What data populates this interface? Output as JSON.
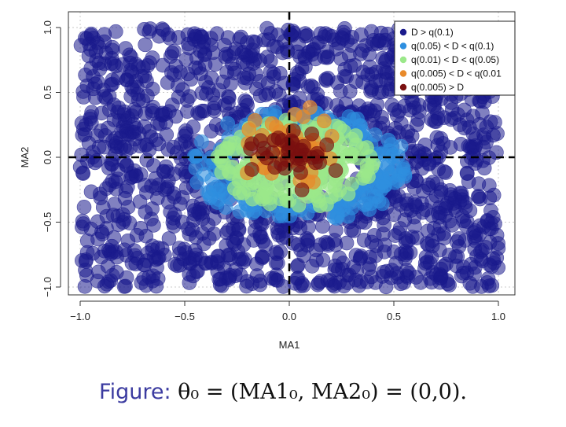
{
  "chart_data": {
    "type": "scatter",
    "xlabel": "MA1",
    "ylabel": "MA2",
    "xlim": [
      -1.0,
      1.0
    ],
    "ylim": [
      -1.0,
      1.0
    ],
    "x_ticks": [
      "−1.0",
      "−0.5",
      "0.0",
      "0.5",
      "1.0"
    ],
    "y_ticks": [
      "−1.0",
      "−0.5",
      "0.0",
      "0.5",
      "1.0"
    ],
    "grid": true,
    "legend_position": "top-right",
    "reference_lines": {
      "x": 0.0,
      "y": 0.0,
      "style": "dashed"
    },
    "series": [
      {
        "name": "D > q(0.1)",
        "color": "#1a1a8c",
        "region": "uniform over [-1,1] x [-1,1]"
      },
      {
        "name": "q(0.05) < D < q(0.1)",
        "color": "#2e8fe0",
        "region": "ring around (0.05,-0.05), radius ~0.5"
      },
      {
        "name": "q(0.01) < D < q(0.05)",
        "color": "#9be88a",
        "region": "cluster around (0.05,-0.05), radius ~0.4"
      },
      {
        "name": "q(0.005) < D < q(0.01",
        "color": "#e88a2a",
        "region": "cluster around (0.0,0.05), radius ~0.25"
      },
      {
        "name": "q(0.005) > D",
        "color": "#7a1010",
        "region": "cluster around (0.0,0.0), radius ~0.2"
      }
    ]
  },
  "caption": {
    "label": "Figure:",
    "formula": "θ₀ = (MA1₀, MA2₀) = (0,0)."
  }
}
